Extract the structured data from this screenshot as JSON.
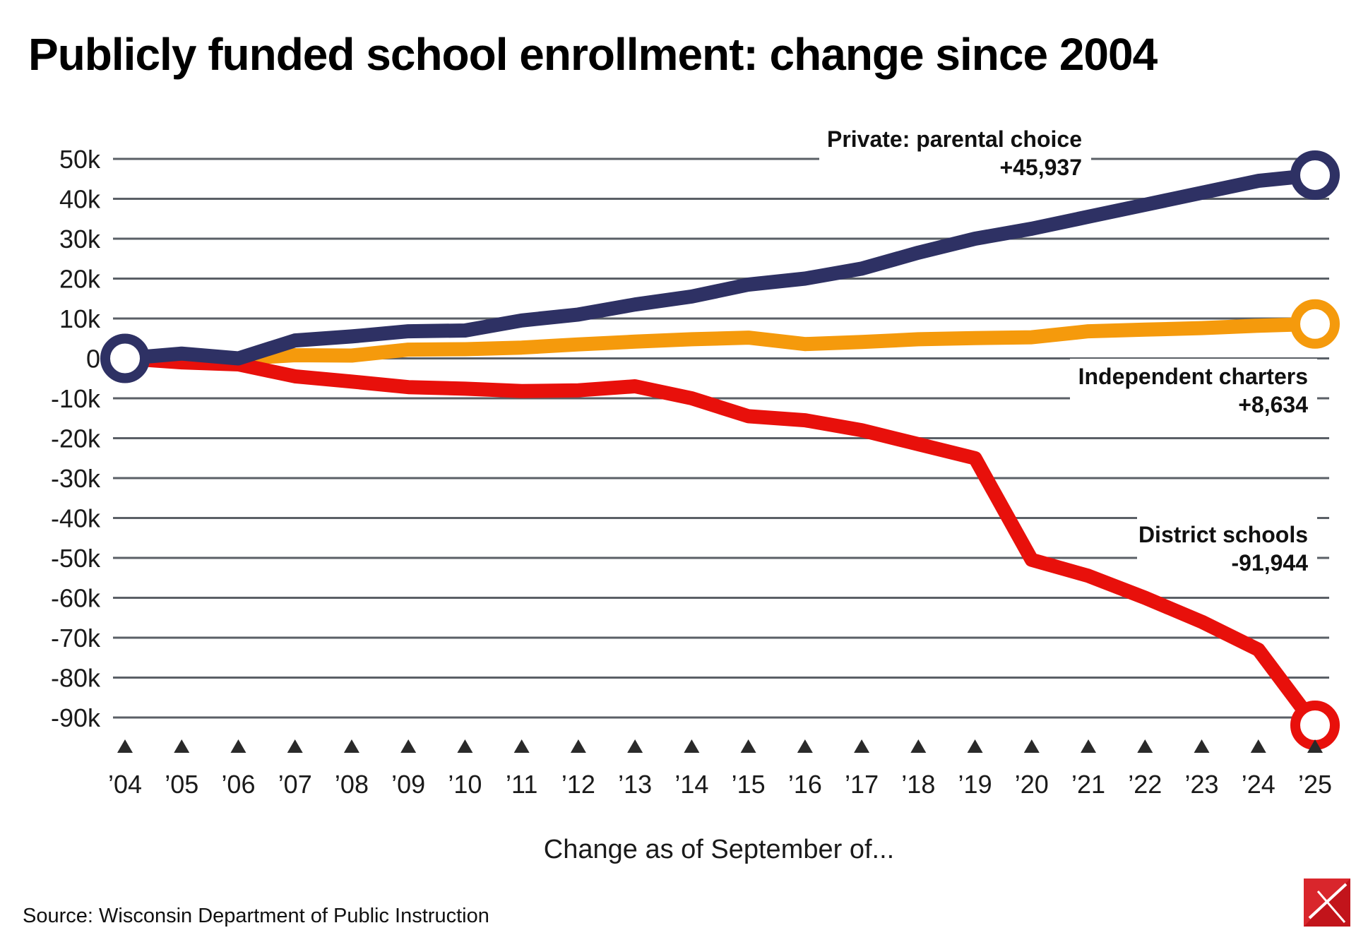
{
  "title": "Publicly funded school enrollment: change since 2004",
  "source": "Source: Wisconsin Department of Public Instruction",
  "colors": {
    "private": "#2e3164",
    "charters": "#f59a0c",
    "district": "#e8100b",
    "grid": "#5a5f66",
    "logo": "#c2141b"
  },
  "chart_data": {
    "type": "line",
    "title": "Publicly funded school enrollment: change since 2004",
    "xlabel": "Change as of September of...",
    "ylabel": "",
    "ylim": [
      -90000,
      50000
    ],
    "grid": true,
    "yticks": [
      50000,
      40000,
      30000,
      20000,
      10000,
      0,
      -10000,
      -20000,
      -30000,
      -40000,
      -50000,
      -60000,
      -70000,
      -80000,
      -90000
    ],
    "ytick_labels": [
      "50k",
      "40k",
      "30k",
      "20k",
      "10k",
      "0",
      "-10k",
      "-20k",
      "-30k",
      "-40k",
      "-50k",
      "-60k",
      "-70k",
      "-80k",
      "-90k"
    ],
    "categories": [
      "’04",
      "’05",
      "’06",
      "’07",
      "’08",
      "’09",
      "’10",
      "’11",
      "’12",
      "’13",
      "’14",
      "’15",
      "’16",
      "’17",
      "’18",
      "’19",
      "’20",
      "’21",
      "’22",
      "’23",
      "’24",
      "’25"
    ],
    "series": [
      {
        "name": "Private: parental choice",
        "key": "private",
        "end_label": "+45,937",
        "values": [
          0,
          1200,
          0,
          4500,
          5500,
          6800,
          7000,
          9500,
          11000,
          13500,
          15500,
          18500,
          20000,
          22500,
          26500,
          30000,
          32500,
          35500,
          38500,
          41500,
          44500,
          45937
        ]
      },
      {
        "name": "Independent charters",
        "key": "charters",
        "end_label": "+8,634",
        "values": [
          0,
          -300,
          0,
          800,
          700,
          2200,
          2300,
          2700,
          3500,
          4200,
          4800,
          5200,
          3600,
          4100,
          4800,
          5100,
          5300,
          6800,
          7200,
          7600,
          8200,
          8634
        ]
      },
      {
        "name": "District schools",
        "key": "district",
        "end_label": "-91,944",
        "values": [
          0,
          -1000,
          -1500,
          -4500,
          -5800,
          -7200,
          -7600,
          -8200,
          -8000,
          -7000,
          -10000,
          -14500,
          -15500,
          -18000,
          -21500,
          -25000,
          -50500,
          -54500,
          -60000,
          -66000,
          -73000,
          -91944
        ]
      }
    ]
  }
}
